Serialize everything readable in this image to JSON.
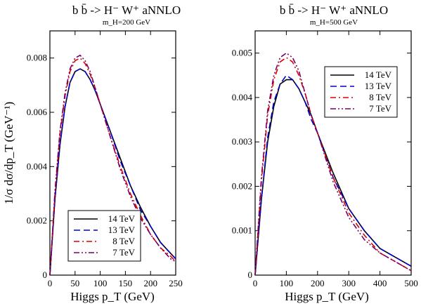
{
  "chart_data": [
    {
      "type": "line",
      "title": "b b̄ -> H⁻ W⁺   aNNLO",
      "subtitle": "m_H=200 GeV",
      "xlabel": "Higgs  p_T (GeV)",
      "ylabel": "1/σ  dσ/dp_T (GeV⁻¹)",
      "xlim": [
        0,
        250
      ],
      "ylim": [
        0,
        0.009
      ],
      "xticks": [
        "0",
        "50",
        "100",
        "150",
        "200",
        "250"
      ],
      "yticks": [
        "0",
        "0.002",
        "0.004",
        "0.006",
        "0.008"
      ],
      "legend_position": "bottom-center",
      "series": [
        {
          "name": "14 TeV",
          "color": "#000000",
          "dash": "solid",
          "x": [
            0,
            10,
            20,
            30,
            40,
            50,
            60,
            70,
            80,
            90,
            100,
            120,
            140,
            160,
            180,
            200,
            220,
            240,
            250
          ],
          "y": [
            0,
            0.0028,
            0.0048,
            0.0062,
            0.0071,
            0.0075,
            0.0076,
            0.0075,
            0.0072,
            0.0068,
            0.0063,
            0.0053,
            0.0043,
            0.0033,
            0.0025,
            0.0018,
            0.0012,
            0.0008,
            0.0006
          ]
        },
        {
          "name": "13 TeV",
          "color": "#0000cc",
          "dash": "dashed",
          "x": [
            0,
            10,
            20,
            30,
            40,
            50,
            60,
            70,
            80,
            90,
            100,
            120,
            140,
            160,
            180,
            200,
            220,
            240,
            250
          ],
          "y": [
            0,
            0.0028,
            0.0048,
            0.0062,
            0.0071,
            0.0075,
            0.0076,
            0.0075,
            0.0072,
            0.0068,
            0.0063,
            0.0053,
            0.0042,
            0.0033,
            0.0024,
            0.0018,
            0.0012,
            0.0008,
            0.0006
          ]
        },
        {
          "name": "8 TeV",
          "color": "#dd0000",
          "dash": "dashdot",
          "x": [
            0,
            10,
            20,
            30,
            40,
            50,
            60,
            70,
            80,
            90,
            100,
            120,
            140,
            160,
            180,
            200,
            220,
            240,
            250
          ],
          "y": [
            0,
            0.003,
            0.0052,
            0.0066,
            0.0075,
            0.0079,
            0.008,
            0.0078,
            0.0074,
            0.0069,
            0.0063,
            0.0051,
            0.004,
            0.003,
            0.0022,
            0.0015,
            0.001,
            0.0007,
            0.0005
          ]
        },
        {
          "name": "7 TeV",
          "color": "#770066",
          "dash": "dashdotdot",
          "x": [
            0,
            10,
            20,
            30,
            40,
            50,
            60,
            70,
            80,
            90,
            100,
            120,
            140,
            160,
            180,
            200,
            220,
            240,
            250
          ],
          "y": [
            0,
            0.0031,
            0.0053,
            0.0067,
            0.0076,
            0.008,
            0.0081,
            0.0079,
            0.0075,
            0.0069,
            0.0063,
            0.0051,
            0.0039,
            0.0029,
            0.0021,
            0.0015,
            0.001,
            0.0006,
            0.0005
          ]
        }
      ]
    },
    {
      "type": "line",
      "title": "b b̄ -> H⁻ W⁺   aNNLO",
      "subtitle": "m_H=500 GeV",
      "xlabel": "Higgs  p_T (GeV)",
      "ylabel": "",
      "xlim": [
        0,
        500
      ],
      "ylim": [
        0,
        0.0055
      ],
      "xticks": [
        "0",
        "100",
        "200",
        "300",
        "400",
        "500"
      ],
      "yticks": [
        "0",
        "0.001",
        "0.002",
        "0.003",
        "0.004",
        "0.005"
      ],
      "legend_position": "top-right",
      "series": [
        {
          "name": "14 TeV",
          "color": "#000000",
          "dash": "solid",
          "x": [
            0,
            20,
            40,
            60,
            80,
            100,
            120,
            140,
            160,
            180,
            200,
            250,
            300,
            350,
            400,
            450,
            500
          ],
          "y": [
            0,
            0.0017,
            0.003,
            0.0038,
            0.0043,
            0.0044,
            0.0044,
            0.0042,
            0.0039,
            0.0036,
            0.0032,
            0.0023,
            0.0015,
            0.001,
            0.0006,
            0.0004,
            0.0002
          ]
        },
        {
          "name": "13 TeV",
          "color": "#0000cc",
          "dash": "dashed",
          "x": [
            0,
            20,
            40,
            60,
            80,
            100,
            120,
            140,
            160,
            180,
            200,
            250,
            300,
            350,
            400,
            450,
            500
          ],
          "y": [
            0,
            0.0017,
            0.0031,
            0.0039,
            0.0043,
            0.0045,
            0.0044,
            0.0042,
            0.0039,
            0.0035,
            0.0032,
            0.0022,
            0.0015,
            0.001,
            0.0006,
            0.0004,
            0.0002
          ]
        },
        {
          "name": "8 TeV",
          "color": "#dd0000",
          "dash": "dashdot",
          "x": [
            0,
            20,
            40,
            60,
            80,
            100,
            120,
            140,
            160,
            180,
            200,
            250,
            300,
            350,
            400,
            450,
            500
          ],
          "y": [
            0,
            0.0021,
            0.0036,
            0.0044,
            0.0048,
            0.0049,
            0.0048,
            0.0045,
            0.0041,
            0.0036,
            0.0032,
            0.0022,
            0.0014,
            0.0009,
            0.0005,
            0.0003,
            0.0001
          ]
        },
        {
          "name": "7 TeV",
          "color": "#770066",
          "dash": "dashdotdot",
          "x": [
            0,
            20,
            40,
            60,
            80,
            100,
            120,
            140,
            160,
            180,
            200,
            250,
            300,
            350,
            400,
            450,
            500
          ],
          "y": [
            0,
            0.0022,
            0.0037,
            0.0045,
            0.0049,
            0.005,
            0.0049,
            0.0046,
            0.0041,
            0.0036,
            0.0032,
            0.0021,
            0.0013,
            0.0008,
            0.0005,
            0.0003,
            0.0001
          ]
        }
      ]
    }
  ]
}
